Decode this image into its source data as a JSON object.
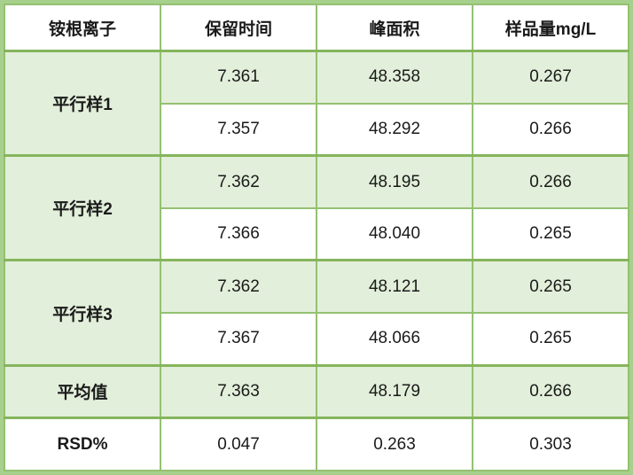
{
  "chart_data": {
    "type": "table",
    "title": "",
    "columns": [
      "铵根离子",
      "保留时间",
      "峰面积",
      "样品量mg/L"
    ],
    "groups": [
      {
        "label": "平行样1",
        "rows": [
          [
            "7.361",
            "48.358",
            "0.267"
          ],
          [
            "7.357",
            "48.292",
            "0.266"
          ]
        ]
      },
      {
        "label": "平行样2",
        "rows": [
          [
            "7.362",
            "48.195",
            "0.266"
          ],
          [
            "7.366",
            "48.040",
            "0.265"
          ]
        ]
      },
      {
        "label": "平行样3",
        "rows": [
          [
            "7.362",
            "48.121",
            "0.265"
          ],
          [
            "7.367",
            "48.066",
            "0.265"
          ]
        ]
      }
    ],
    "summary": [
      {
        "label": "平均值",
        "values": [
          "7.363",
          "48.179",
          "0.266"
        ],
        "highlight": true
      },
      {
        "label": "RSD%",
        "values": [
          "0.047",
          "0.263",
          "0.303"
        ],
        "highlight": false
      }
    ],
    "layout": {
      "header_background": "#ffffff",
      "stripe_pattern": "first sub-row of each group green, second white; average row green; RSD row white",
      "grid": true
    }
  },
  "colors": {
    "cell_fill_green": "#e2efda",
    "cell_fill_white": "#ffffff",
    "grid_line_green": "#94c171",
    "thick_line_green": "#85b55c",
    "outer_frame_green": "#a8d08d",
    "text_color": "#1a1a1a"
  }
}
